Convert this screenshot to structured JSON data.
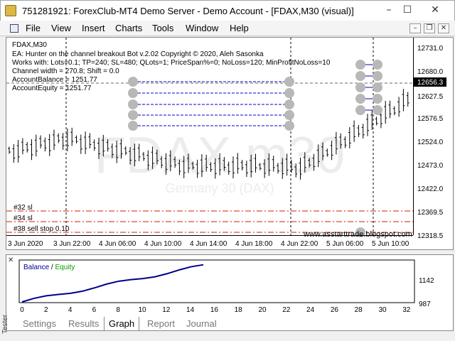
{
  "window": {
    "title": "751281921: ForexClub-MT4 Demo Server - Demo Account - [FDAX,M30 (visual)]",
    "minimize": "–",
    "maximize": "☐",
    "close": "✕"
  },
  "menu": {
    "items": [
      "File",
      "View",
      "Insert",
      "Charts",
      "Tools",
      "Window",
      "Help"
    ],
    "mdi_minimize": "–",
    "mdi_restore": "❐",
    "mdi_close": "✕"
  },
  "chart": {
    "symbol": "FDAX,M30",
    "info_lines": [
      "EA: Hunter on the channel breakout Bot v.2.02 Copyright © 2020, Aleh Sasonka",
      "Works with: Lots=0.1; TP=240; SL=480; QLots=1; PriceSpan%=0; NoLoss=120; MinProfitNoLoss=10",
      "Channel width = 270.8; Shift = 0.0",
      "AccountBalance = 1251.77",
      "AccountEquity = 1251.77"
    ],
    "watermark": "FDAX m30",
    "watermark_sub": "Germany 30 (DAX)",
    "price_ticks": [
      "12731.0",
      "12680.0",
      "12627.5",
      "12576.5",
      "12524.0",
      "12473.0",
      "12422.0",
      "12369.5",
      "12318.5"
    ],
    "current_price": "12656.3",
    "time_ticks": [
      "3 Jun 2020",
      "3 Jun 22:00",
      "4 Jun 06:00",
      "4 Jun 10:00",
      "4 Jun 14:00",
      "4 Jun 18:00",
      "4 Jun 22:00",
      "5 Jun 06:00",
      "5 Jun 10:00"
    ],
    "order_labels": [
      "#32 sl",
      "#34 sl",
      "#38 sell stop 0.10"
    ],
    "website": "www.asstarttrade.blogspot.com",
    "up_color": "#000000",
    "level_line_color": "#cc2200",
    "order_line_color": "#0000cc"
  },
  "tester": {
    "close": "✕",
    "label": "Tester",
    "legend_balance": "Balance",
    "legend_sep": "/",
    "legend_equity": "Equity",
    "balance_color": "#00008b",
    "equity_color": "#00a000",
    "y_ticks": [
      "1142",
      "987"
    ],
    "x_ticks": [
      "0",
      "2",
      "4",
      "6",
      "8",
      "10",
      "12",
      "14",
      "16",
      "18",
      "20",
      "22",
      "24",
      "26",
      "28",
      "30",
      "32"
    ],
    "tabs": [
      "Settings",
      "Results",
      "Graph",
      "Report",
      "Journal"
    ],
    "active_tab": "Graph"
  }
}
